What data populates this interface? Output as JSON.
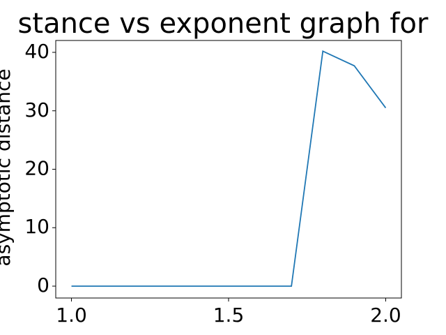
{
  "chart_data": {
    "type": "line",
    "title": "stance vs exponent graph for",
    "y_label": "asymptotic distance",
    "x": [
      1.0,
      1.1,
      1.2,
      1.3,
      1.4,
      1.5,
      1.6,
      1.7,
      1.8,
      1.9,
      2.0
    ],
    "series": [
      {
        "color": "#1f77b4",
        "values": [
          0,
          0,
          0,
          0,
          0,
          0,
          0,
          0,
          40.2,
          37.7,
          30.5
        ]
      }
    ],
    "xlim": [
      0.95,
      2.05
    ],
    "ylim": [
      -2.03,
      42.03
    ],
    "xticks": [
      {
        "value": 1.0,
        "label": "1.0"
      },
      {
        "value": 1.5,
        "label": "1.5"
      },
      {
        "value": 2.0,
        "label": "2.0"
      }
    ],
    "yticks": [
      0,
      10,
      20,
      30,
      40
    ]
  }
}
